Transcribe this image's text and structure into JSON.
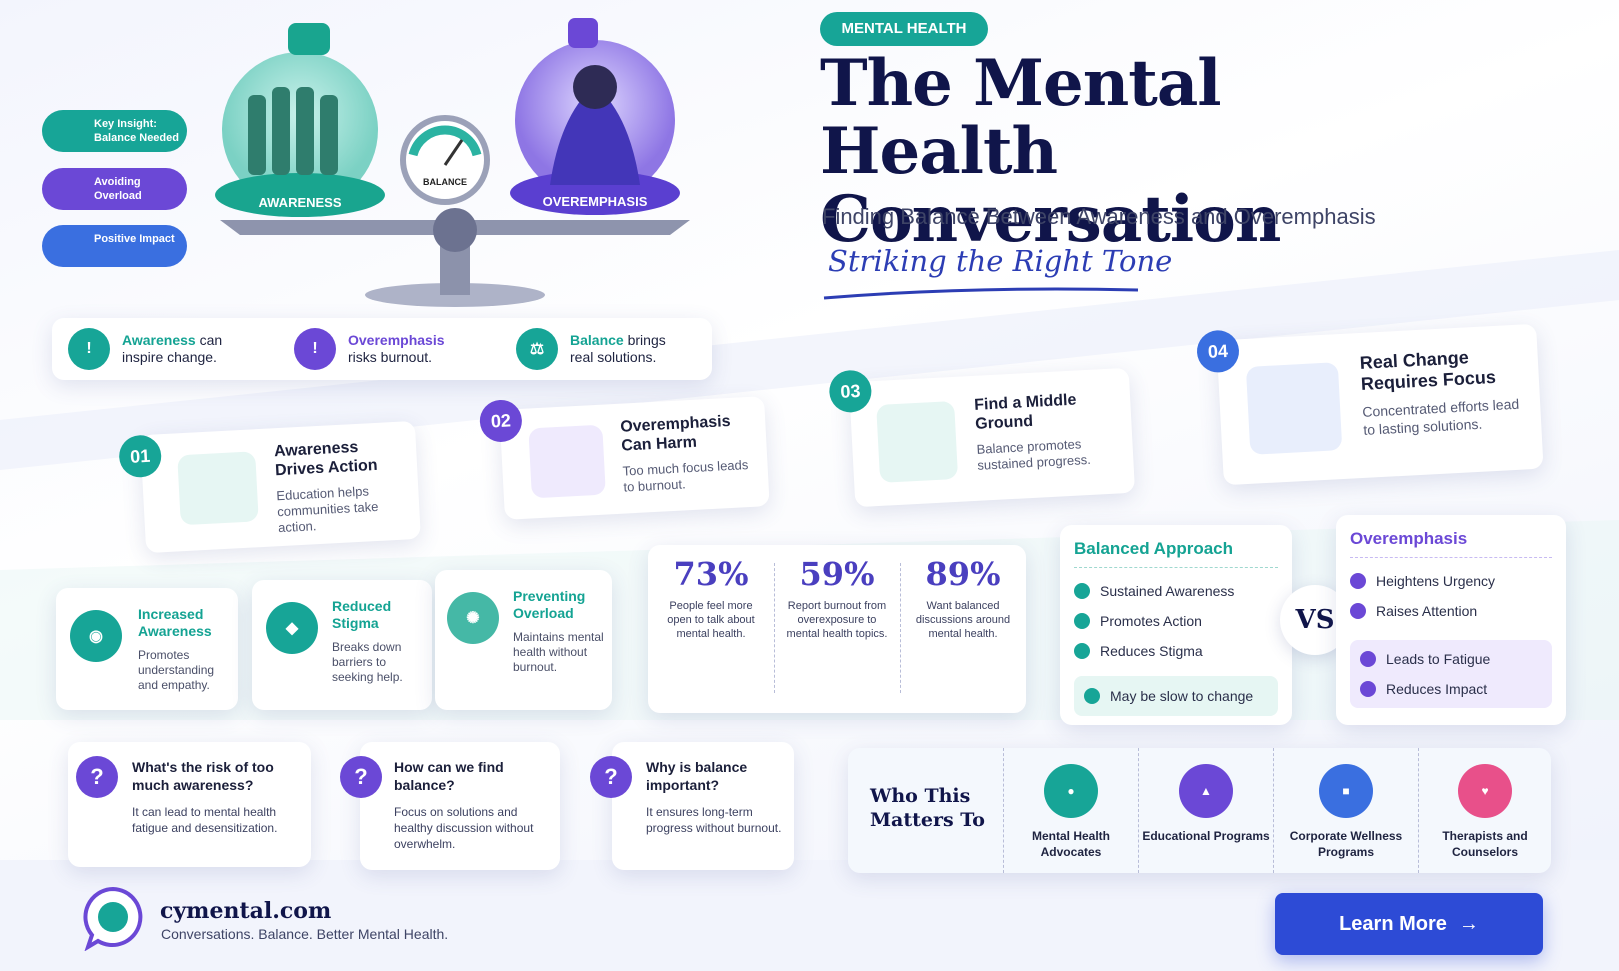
{
  "header": {
    "badge": "MENTAL HEALTH",
    "title": "The Mental Health Conversation",
    "subtitle": "Finding Balance Between Awareness and Overemphasis",
    "tagline": "Striking the Right Tone"
  },
  "illustration": {
    "left_label": "AWARENESS",
    "gauge_label": "BALANCE",
    "right_label": "OVEREMPHASIS"
  },
  "pills": [
    "Key Insight: Balance Needed",
    "Avoiding Overload",
    "Positive Impact"
  ],
  "summary": [
    {
      "highlight": "Awareness",
      "text": "can inspire change."
    },
    {
      "highlight": "Overemphasis",
      "text": "risks burnout."
    },
    {
      "highlight": "Balance",
      "text": "brings real solutions."
    }
  ],
  "steps": [
    {
      "number": "01",
      "title": "Awareness Drives Action",
      "text": "Education helps communities take action."
    },
    {
      "number": "02",
      "title": "Overemphasis Can Harm",
      "text": "Too much focus leads to burnout."
    },
    {
      "number": "03",
      "title": "Find a Middle Ground",
      "text": "Balance promotes sustained progress."
    },
    {
      "number": "04",
      "title": "Real Change Requires Focus",
      "text": "Concentrated efforts lead to lasting solutions."
    }
  ],
  "features": [
    {
      "title": "Increased Awareness",
      "text": "Promotes understanding and empathy."
    },
    {
      "title": "Reduced Stigma",
      "text": "Breaks down barriers to seeking help."
    },
    {
      "title": "Preventing Overload",
      "text": "Maintains mental health without burnout."
    }
  ],
  "stats": [
    {
      "value": "73%",
      "text": "People feel more open to talk about mental health."
    },
    {
      "value": "59%",
      "text": "Report burnout from overexposure to mental health topics."
    },
    {
      "value": "89%",
      "text": "Want balanced discussions around mental health."
    }
  ],
  "comparison": {
    "balanced": {
      "title": "Balanced Approach",
      "pros": [
        "Sustained Awareness",
        "Promotes Action",
        "Reduces Stigma"
      ],
      "cons": [
        "May be slow to change"
      ]
    },
    "vs": "VS",
    "overemphasis": {
      "title": "Overemphasis",
      "pros": [
        "Heightens Urgency",
        "Raises Attention"
      ],
      "cons": [
        "Leads to Fatigue",
        "Reduces Impact"
      ]
    }
  },
  "faq": [
    {
      "question": "What's the risk of too much awareness?",
      "answer": "It can lead to mental health fatigue and desensitization."
    },
    {
      "question": "How can we find balance?",
      "answer": "Focus on solutions and healthy discussion without overwhelm."
    },
    {
      "question": "Why is balance important?",
      "answer": "It ensures long-term progress without burnout."
    }
  ],
  "audience": {
    "title": "Who This Matters To",
    "items": [
      "Mental Health Advocates",
      "Educational Programs",
      "Corporate Wellness Programs",
      "Therapists and Counselors"
    ]
  },
  "footer": {
    "brand": "cymental.com",
    "tagline": "Conversations. Balance. Better Mental Health.",
    "button": "Learn More"
  }
}
